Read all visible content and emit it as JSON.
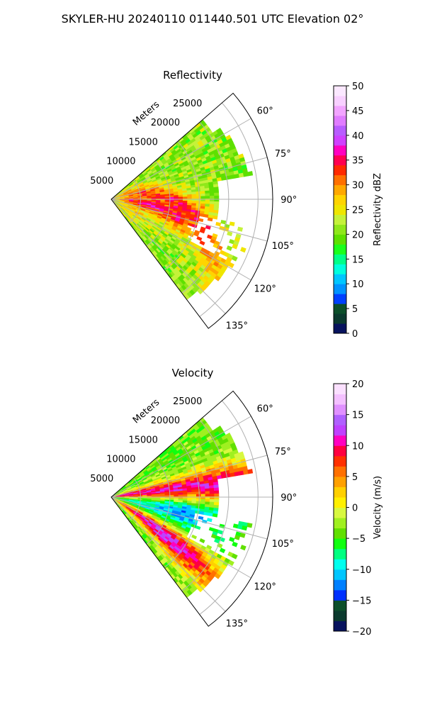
{
  "figure_title": "SKYLER-HU  20240110  011440.501 UTC Elevation 02°",
  "chart_data": [
    {
      "type": "heatmap",
      "projection": "polar-sector",
      "title": "Reflectivity",
      "radial_label": "Meters",
      "radial_ticks": [
        "5000",
        "10000",
        "15000",
        "20000",
        "25000"
      ],
      "radial_tick_values": [
        5000,
        10000,
        15000,
        20000,
        25000
      ],
      "radial_max": 27500,
      "angle_range_deg": [
        49,
        143
      ],
      "angle_ticks": [
        "60°",
        "75°",
        "90°",
        "105°",
        "120°",
        "135°"
      ],
      "angle_tick_values": [
        60,
        75,
        90,
        105,
        120,
        135
      ],
      "grid": true,
      "colorbar": {
        "label": "Reflectivity dBZ",
        "range": [
          0,
          50
        ],
        "ticks": [
          "0",
          "5",
          "10",
          "15",
          "20",
          "25",
          "30",
          "35",
          "40",
          "45",
          "50"
        ],
        "tick_values": [
          0,
          5,
          10,
          15,
          20,
          25,
          30,
          35,
          40,
          45,
          50
        ],
        "colors": [
          "#08135e",
          "#0b3a2e",
          "#0c4f2a",
          "#0040ff",
          "#0093ff",
          "#00c6ff",
          "#00ffdd",
          "#00ff88",
          "#1bff1b",
          "#5ee000",
          "#8fe81a",
          "#c5f23a",
          "#efe600",
          "#ffd400",
          "#ffa800",
          "#ff7000",
          "#ff2a00",
          "#ff0050",
          "#ff00c0",
          "#d040ff",
          "#b85cff",
          "#e07cff",
          "#f2a4ff",
          "#f8d0ff",
          "#fbe8ff"
        ]
      },
      "field": {
        "strong_band_azimuth_deg": [
          60,
          138
        ],
        "strong_band_range_m": [
          3000,
          23000
        ],
        "peak_value": 42,
        "typical_value": 25,
        "edge_value": 20
      }
    },
    {
      "type": "heatmap",
      "projection": "polar-sector",
      "title": "Velocity",
      "radial_label": "Meters",
      "radial_ticks": [
        "5000",
        "10000",
        "15000",
        "20000",
        "25000"
      ],
      "radial_tick_values": [
        5000,
        10000,
        15000,
        20000,
        25000
      ],
      "radial_max": 27500,
      "angle_range_deg": [
        49,
        143
      ],
      "angle_ticks": [
        "60°",
        "75°",
        "90°",
        "105°",
        "120°",
        "135°"
      ],
      "angle_tick_values": [
        60,
        75,
        90,
        105,
        120,
        135
      ],
      "grid": true,
      "colorbar": {
        "label": "Velocity (m/s)",
        "range": [
          -20,
          20
        ],
        "ticks": [
          "−20",
          "−15",
          "−10",
          "−5",
          "0",
          "5",
          "10",
          "15",
          "20"
        ],
        "tick_values": [
          -20,
          -15,
          -10,
          -5,
          0,
          5,
          10,
          15,
          20
        ],
        "colors": [
          "#08135e",
          "#0b3a2e",
          "#0c4f2a",
          "#0030ff",
          "#0080ff",
          "#00c6ff",
          "#00ffee",
          "#00ff80",
          "#10ff10",
          "#60e000",
          "#a0f020",
          "#d8f840",
          "#fff000",
          "#ffd000",
          "#ffa000",
          "#ff7000",
          "#ff3000",
          "#ff0040",
          "#ff00c0",
          "#c040ff",
          "#b060ff",
          "#e090ff",
          "#f4c0ff",
          "#fbe0ff"
        ]
      },
      "field": {
        "outbound_band_azimuth_deg": [
          74,
          90
        ],
        "inbound_band_azimuth_deg": [
          95,
          135
        ],
        "max_outbound": 14,
        "max_inbound": -12
      }
    }
  ]
}
